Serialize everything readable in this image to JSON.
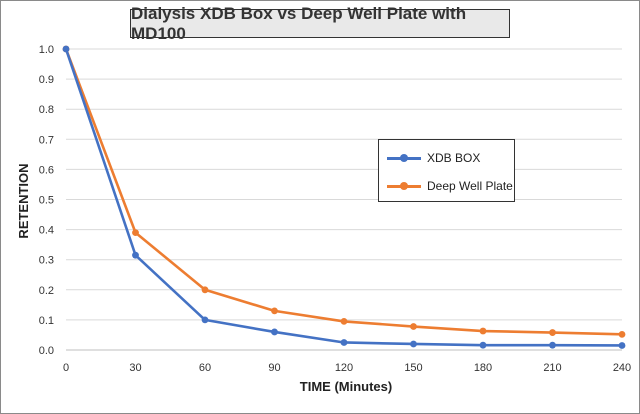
{
  "chart_data": {
    "type": "line",
    "title": "Dialysis XDB Box vs Deep Well Plate with MD100",
    "xlabel": "TIME (Minutes)",
    "ylabel": "RETENTION",
    "x": [
      0,
      30,
      60,
      90,
      120,
      150,
      180,
      210,
      240
    ],
    "x_tick_labels": [
      "0",
      "30",
      "60",
      "90",
      "120",
      "150",
      "180",
      "210",
      "240"
    ],
    "y_tick_labels": [
      "0.0",
      "0.1",
      "0.2",
      "0.3",
      "0.4",
      "0.5",
      "0.6",
      "0.7",
      "0.8",
      "0.9",
      "1.0"
    ],
    "xlim": [
      0,
      240
    ],
    "ylim": [
      0,
      1.0
    ],
    "grid": "horizontal",
    "legend_position": "center-right",
    "series": [
      {
        "name": "XDB BOX",
        "color": "#4472c4",
        "values": [
          1.0,
          0.315,
          0.1,
          0.06,
          0.025,
          0.02,
          0.016,
          0.016,
          0.015
        ]
      },
      {
        "name": "Deep Well Plate",
        "color": "#ed7d31",
        "values": [
          1.0,
          0.39,
          0.2,
          0.13,
          0.095,
          0.078,
          0.063,
          0.058,
          0.052
        ]
      }
    ]
  }
}
